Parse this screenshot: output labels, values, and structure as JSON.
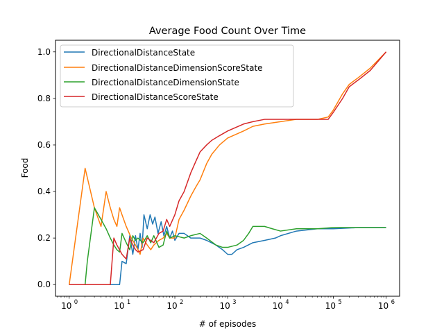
{
  "chart_data": {
    "type": "line",
    "title": "Average Food Count Over Time",
    "xlabel": "# of episodes",
    "ylabel": "Food",
    "xscale": "log",
    "xlim": [
      0.55,
      1800000
    ],
    "ylim": [
      -0.05,
      1.05
    ],
    "xticks": [
      {
        "base": "10",
        "exp": "0",
        "value": 1
      },
      {
        "base": "10",
        "exp": "1",
        "value": 10
      },
      {
        "base": "10",
        "exp": "2",
        "value": 100
      },
      {
        "base": "10",
        "exp": "3",
        "value": 1000
      },
      {
        "base": "10",
        "exp": "4",
        "value": 10000
      },
      {
        "base": "10",
        "exp": "5",
        "value": 100000
      },
      {
        "base": "10",
        "exp": "6",
        "value": 1000000
      }
    ],
    "yticks": [
      {
        "label": "0.0",
        "value": 0.0
      },
      {
        "label": "0.2",
        "value": 0.2
      },
      {
        "label": "0.4",
        "value": 0.4
      },
      {
        "label": "0.6",
        "value": 0.6
      },
      {
        "label": "0.8",
        "value": 0.8
      },
      {
        "label": "1.0",
        "value": 1.0
      }
    ],
    "grid": false,
    "legend_position": "top-left",
    "series": [
      {
        "name": "DirectionalDistanceState",
        "color": "#1f77b4",
        "points": [
          [
            1,
            0
          ],
          [
            9,
            0
          ],
          [
            10,
            0.1
          ],
          [
            12,
            0.09
          ],
          [
            14,
            0.21
          ],
          [
            16,
            0.13
          ],
          [
            18,
            0.21
          ],
          [
            20,
            0.15
          ],
          [
            22,
            0.22
          ],
          [
            24,
            0.16
          ],
          [
            26,
            0.3
          ],
          [
            30,
            0.24
          ],
          [
            34,
            0.3
          ],
          [
            38,
            0.26
          ],
          [
            42,
            0.29
          ],
          [
            48,
            0.22
          ],
          [
            55,
            0.27
          ],
          [
            62,
            0.21
          ],
          [
            70,
            0.25
          ],
          [
            80,
            0.2
          ],
          [
            90,
            0.23
          ],
          [
            100,
            0.19
          ],
          [
            120,
            0.22
          ],
          [
            150,
            0.22
          ],
          [
            200,
            0.2
          ],
          [
            300,
            0.2
          ],
          [
            400,
            0.19
          ],
          [
            600,
            0.17
          ],
          [
            800,
            0.15
          ],
          [
            1000,
            0.13
          ],
          [
            1200,
            0.13
          ],
          [
            1500,
            0.15
          ],
          [
            2000,
            0.16
          ],
          [
            3000,
            0.18
          ],
          [
            5000,
            0.19
          ],
          [
            8000,
            0.2
          ],
          [
            10000,
            0.21
          ],
          [
            20000,
            0.23
          ],
          [
            50000,
            0.24
          ],
          [
            100000,
            0.24
          ],
          [
            300000,
            0.245
          ],
          [
            1000000,
            0.245
          ]
        ]
      },
      {
        "name": "DirectionalDistanceDimensionScoreState",
        "color": "#ff7f0e",
        "points": [
          [
            1,
            0
          ],
          [
            2,
            0.5
          ],
          [
            3,
            0.33
          ],
          [
            4,
            0.25
          ],
          [
            5,
            0.4
          ],
          [
            6,
            0.33
          ],
          [
            7,
            0.28
          ],
          [
            8,
            0.25
          ],
          [
            9,
            0.33
          ],
          [
            10,
            0.3
          ],
          [
            12,
            0.25
          ],
          [
            15,
            0.2
          ],
          [
            18,
            0.17
          ],
          [
            20,
            0.15
          ],
          [
            22,
            0.13
          ],
          [
            25,
            0.2
          ],
          [
            30,
            0.17
          ],
          [
            35,
            0.15
          ],
          [
            40,
            0.17
          ],
          [
            50,
            0.19
          ],
          [
            60,
            0.2
          ],
          [
            70,
            0.22
          ],
          [
            80,
            0.2
          ],
          [
            100,
            0.2
          ],
          [
            120,
            0.28
          ],
          [
            150,
            0.32
          ],
          [
            200,
            0.38
          ],
          [
            250,
            0.42
          ],
          [
            300,
            0.45
          ],
          [
            400,
            0.52
          ],
          [
            500,
            0.56
          ],
          [
            700,
            0.6
          ],
          [
            1000,
            0.63
          ],
          [
            2000,
            0.66
          ],
          [
            3000,
            0.68
          ],
          [
            5000,
            0.69
          ],
          [
            10000,
            0.7
          ],
          [
            20000,
            0.71
          ],
          [
            50000,
            0.71
          ],
          [
            80000,
            0.72
          ],
          [
            100000,
            0.75
          ],
          [
            150000,
            0.82
          ],
          [
            200000,
            0.86
          ],
          [
            300000,
            0.89
          ],
          [
            500000,
            0.93
          ],
          [
            1000000,
            1.0
          ]
        ]
      },
      {
        "name": "DirectionalDistanceDimensionState",
        "color": "#2ca02c",
        "points": [
          [
            1,
            0
          ],
          [
            2,
            0
          ],
          [
            2.2,
            0.1
          ],
          [
            3,
            0.33
          ],
          [
            4,
            0.28
          ],
          [
            5,
            0.24
          ],
          [
            6,
            0.2
          ],
          [
            7,
            0.17
          ],
          [
            8,
            0.15
          ],
          [
            9,
            0.14
          ],
          [
            10,
            0.22
          ],
          [
            12,
            0.18
          ],
          [
            14,
            0.15
          ],
          [
            16,
            0.21
          ],
          [
            18,
            0.19
          ],
          [
            20,
            0.2
          ],
          [
            25,
            0.18
          ],
          [
            30,
            0.21
          ],
          [
            35,
            0.18
          ],
          [
            40,
            0.21
          ],
          [
            50,
            0.16
          ],
          [
            60,
            0.17
          ],
          [
            70,
            0.23
          ],
          [
            80,
            0.2
          ],
          [
            100,
            0.21
          ],
          [
            150,
            0.2
          ],
          [
            200,
            0.21
          ],
          [
            300,
            0.22
          ],
          [
            400,
            0.2
          ],
          [
            600,
            0.17
          ],
          [
            800,
            0.16
          ],
          [
            1000,
            0.16
          ],
          [
            1500,
            0.17
          ],
          [
            2000,
            0.19
          ],
          [
            2500,
            0.22
          ],
          [
            3000,
            0.25
          ],
          [
            5000,
            0.25
          ],
          [
            7000,
            0.24
          ],
          [
            10000,
            0.23
          ],
          [
            20000,
            0.24
          ],
          [
            50000,
            0.24
          ],
          [
            100000,
            0.245
          ],
          [
            1000000,
            0.245
          ]
        ]
      },
      {
        "name": "DirectionalDistanceScoreState",
        "color": "#d62728",
        "points": [
          [
            1,
            0
          ],
          [
            6,
            0
          ],
          [
            7,
            0.2
          ],
          [
            8,
            0.17
          ],
          [
            10,
            0.13
          ],
          [
            12,
            0.11
          ],
          [
            14,
            0.2
          ],
          [
            16,
            0.17
          ],
          [
            18,
            0.15
          ],
          [
            20,
            0.14
          ],
          [
            25,
            0.15
          ],
          [
            30,
            0.2
          ],
          [
            40,
            0.18
          ],
          [
            50,
            0.22
          ],
          [
            60,
            0.23
          ],
          [
            70,
            0.28
          ],
          [
            80,
            0.25
          ],
          [
            100,
            0.3
          ],
          [
            120,
            0.36
          ],
          [
            150,
            0.4
          ],
          [
            200,
            0.48
          ],
          [
            250,
            0.53
          ],
          [
            300,
            0.57
          ],
          [
            400,
            0.6
          ],
          [
            500,
            0.62
          ],
          [
            700,
            0.64
          ],
          [
            1000,
            0.66
          ],
          [
            2000,
            0.69
          ],
          [
            3000,
            0.7
          ],
          [
            5000,
            0.71
          ],
          [
            10000,
            0.71
          ],
          [
            20000,
            0.71
          ],
          [
            50000,
            0.71
          ],
          [
            80000,
            0.71
          ],
          [
            100000,
            0.74
          ],
          [
            150000,
            0.8
          ],
          [
            200000,
            0.85
          ],
          [
            300000,
            0.88
          ],
          [
            500000,
            0.92
          ],
          [
            1000000,
            1.0
          ]
        ]
      }
    ]
  }
}
